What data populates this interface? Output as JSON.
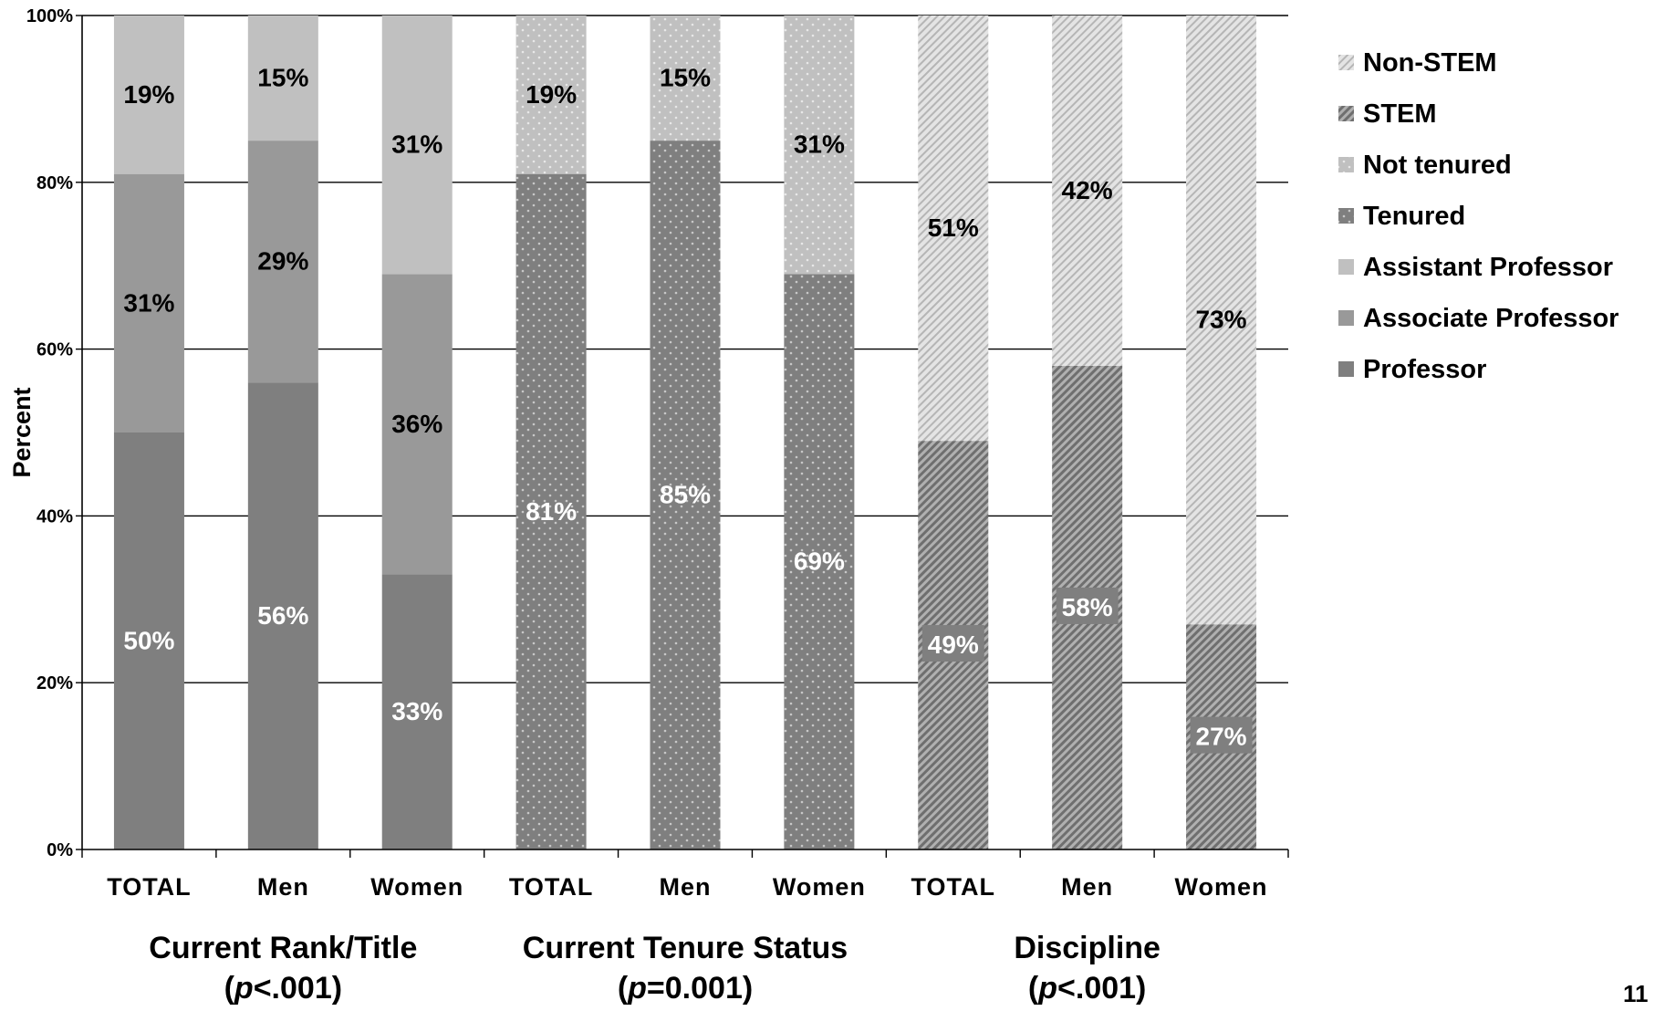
{
  "chart_data": {
    "type": "bar",
    "stacked": true,
    "ylabel": "Percent",
    "ylim": [
      0,
      100
    ],
    "y_ticks": [
      "0%",
      "20%",
      "40%",
      "60%",
      "80%",
      "100%"
    ],
    "grid": true,
    "legend_position": "right",
    "categories": [
      "TOTAL",
      "Men",
      "Women",
      "TOTAL",
      "Men",
      "Women",
      "TOTAL",
      "Men",
      "Women"
    ],
    "groups": [
      {
        "label": "Current Rank/Title",
        "stat_prefix": "(",
        "stat_p": "p",
        "stat_value": "<.001)"
      },
      {
        "label": "Current Tenure Status",
        "stat_prefix": "(",
        "stat_p": "p",
        "stat_value": "=0.001)"
      },
      {
        "label": "Discipline",
        "stat_prefix": "(",
        "stat_p": "p",
        "stat_value": "<.001)"
      }
    ],
    "series": [
      {
        "name": "Professor",
        "color": "#7f7f7f",
        "pattern": "solid",
        "values": [
          50,
          56,
          33,
          null,
          null,
          null,
          null,
          null,
          null
        ],
        "labels": [
          "50%",
          "56%",
          "33%",
          "",
          "",
          "",
          "",
          "",
          ""
        ]
      },
      {
        "name": "Associate Professor",
        "color": "#999999",
        "pattern": "solid",
        "values": [
          31,
          29,
          36,
          null,
          null,
          null,
          null,
          null,
          null
        ],
        "labels": [
          "31%",
          "29%",
          "36%",
          "",
          "",
          "",
          "",
          "",
          ""
        ]
      },
      {
        "name": "Assistant Professor",
        "color": "#c0c0c0",
        "pattern": "solid",
        "values": [
          19,
          15,
          31,
          null,
          null,
          null,
          null,
          null,
          null
        ],
        "labels": [
          "19%",
          "15%",
          "31%",
          "",
          "",
          "",
          "",
          "",
          ""
        ]
      },
      {
        "name": "Tenured",
        "color": "#7f7f7f",
        "pattern": "dots",
        "values": [
          null,
          null,
          null,
          81,
          85,
          69,
          null,
          null,
          null
        ],
        "labels": [
          "",
          "",
          "",
          "81%",
          "85%",
          "69%",
          "",
          "",
          ""
        ]
      },
      {
        "name": "Not tenured",
        "color": "#c0c0c0",
        "pattern": "dots",
        "values": [
          null,
          null,
          null,
          19,
          15,
          31,
          null,
          null,
          null
        ],
        "labels": [
          "",
          "",
          "",
          "19%",
          "15%",
          "31%",
          "",
          "",
          ""
        ]
      },
      {
        "name": "STEM",
        "color": "#8c8c8c",
        "pattern": "dense-diagonal",
        "values": [
          null,
          null,
          null,
          null,
          null,
          null,
          49,
          58,
          27
        ],
        "labels": [
          "",
          "",
          "",
          "",
          "",
          "",
          "49%",
          "58%",
          "27%"
        ]
      },
      {
        "name": "Non-STEM",
        "color": "#d0d0d0",
        "pattern": "light-diagonal",
        "values": [
          null,
          null,
          null,
          null,
          null,
          null,
          51,
          42,
          73
        ],
        "labels": [
          "",
          "",
          "",
          "",
          "",
          "",
          "51%",
          "42%",
          "73%"
        ]
      }
    ],
    "legend_order": [
      "Non-STEM",
      "STEM",
      "Not tenured",
      "Tenured",
      "Assistant Professor",
      "Associate Professor",
      "Professor"
    ]
  },
  "page_number": "11"
}
